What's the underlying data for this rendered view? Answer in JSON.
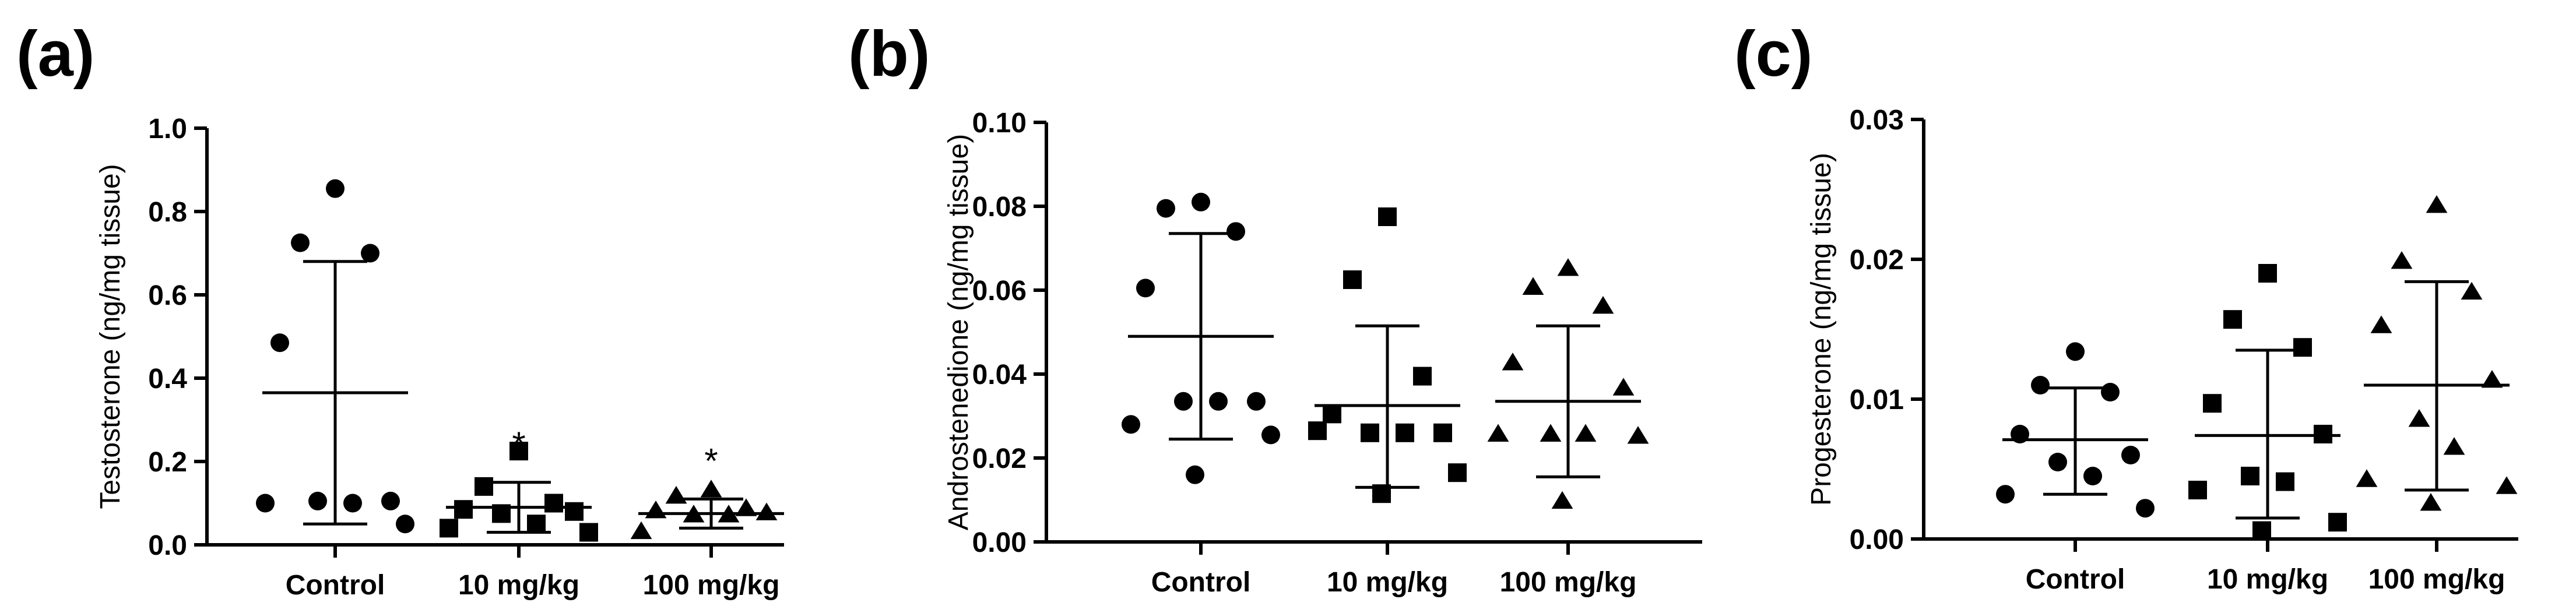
{
  "chart_data": [
    {
      "type": "scatter",
      "panel_label": "(a)",
      "title": "",
      "xlabel": "",
      "ylabel": "Testosterone (ng/mg tissue)",
      "ylim": [
        0,
        1.0
      ],
      "yticks": [
        0.0,
        0.2,
        0.4,
        0.6,
        0.8,
        1.0
      ],
      "ytick_labels": [
        "0.0",
        "0.2",
        "0.4",
        "0.6",
        "0.8",
        "1.0"
      ],
      "categories": [
        "Control",
        "10 mg/kg",
        "100 mg/kg"
      ],
      "series": [
        {
          "name": "Control",
          "marker": "circle",
          "values": [
            0.855,
            0.725,
            0.7,
            0.485,
            0.105,
            0.105,
            0.1,
            0.1,
            0.05
          ],
          "mean": 0.365,
          "sd_low": 0.05,
          "sd_high": 0.68,
          "annotation": ""
        },
        {
          "name": "10 mg/kg",
          "marker": "square",
          "values": [
            0.225,
            0.14,
            0.1,
            0.085,
            0.08,
            0.075,
            0.05,
            0.04,
            0.03
          ],
          "mean": 0.09,
          "sd_low": 0.03,
          "sd_high": 0.15,
          "annotation": "*"
        },
        {
          "name": "100 mg/kg",
          "marker": "triangle",
          "values": [
            0.13,
            0.115,
            0.085,
            0.08,
            0.075,
            0.07,
            0.07,
            0.03
          ],
          "mean": 0.075,
          "sd_low": 0.04,
          "sd_high": 0.11,
          "annotation": "*"
        }
      ]
    },
    {
      "type": "scatter",
      "panel_label": "(b)",
      "title": "",
      "xlabel": "",
      "ylabel": "Androstenedione (ng/mg tissue)",
      "ylim": [
        0,
        0.1
      ],
      "yticks": [
        0.0,
        0.02,
        0.04,
        0.06,
        0.08,
        0.1
      ],
      "ytick_labels": [
        "0.00",
        "0.02",
        "0.04",
        "0.06",
        "0.08",
        "0.10"
      ],
      "categories": [
        "Control",
        "10 mg/kg",
        "100 mg/kg"
      ],
      "series": [
        {
          "name": "Control",
          "marker": "circle",
          "values": [
            0.081,
            0.0795,
            0.074,
            0.0605,
            0.0335,
            0.0335,
            0.0335,
            0.028,
            0.0255,
            0.016
          ],
          "mean": 0.049,
          "sd_low": 0.0245,
          "sd_high": 0.0735,
          "annotation": ""
        },
        {
          "name": "10 mg/kg",
          "marker": "square",
          "values": [
            0.0775,
            0.0625,
            0.0395,
            0.0305,
            0.026,
            0.026,
            0.026,
            0.0265,
            0.0165,
            0.0115
          ],
          "mean": 0.0325,
          "sd_low": 0.013,
          "sd_high": 0.0515,
          "annotation": ""
        },
        {
          "name": "100 mg/kg",
          "marker": "triangle",
          "values": [
            0.065,
            0.0605,
            0.056,
            0.0425,
            0.0365,
            0.0255,
            0.0255,
            0.0255,
            0.025,
            0.0095
          ],
          "mean": 0.0335,
          "sd_low": 0.0155,
          "sd_high": 0.0515,
          "annotation": ""
        }
      ]
    },
    {
      "type": "scatter",
      "panel_label": "(c)",
      "title": "",
      "xlabel": "",
      "ylabel": "Progesterone (ng/mg tissue)",
      "ylim": [
        0,
        0.03
      ],
      "yticks": [
        0.0,
        0.01,
        0.02,
        0.03
      ],
      "ytick_labels": [
        "0.00",
        "0.01",
        "0.02",
        "0.03"
      ],
      "categories": [
        "Control",
        "10 mg/kg",
        "100 mg/kg"
      ],
      "series": [
        {
          "name": "Control",
          "marker": "circle",
          "values": [
            0.0134,
            0.011,
            0.0105,
            0.0075,
            0.006,
            0.0055,
            0.0045,
            0.0032,
            0.0022
          ],
          "mean": 0.0071,
          "sd_low": 0.0032,
          "sd_high": 0.0108,
          "annotation": ""
        },
        {
          "name": "10 mg/kg",
          "marker": "square",
          "values": [
            0.019,
            0.0157,
            0.0137,
            0.0097,
            0.0075,
            0.0045,
            0.0041,
            0.0035,
            0.0012,
            0.0006
          ],
          "mean": 0.0074,
          "sd_low": 0.0015,
          "sd_high": 0.0135,
          "annotation": ""
        },
        {
          "name": "100 mg/kg",
          "marker": "triangle",
          "values": [
            0.0238,
            0.0198,
            0.0176,
            0.0152,
            0.0113,
            0.0085,
            0.0065,
            0.0042,
            0.0037,
            0.0025
          ],
          "mean": 0.011,
          "sd_low": 0.0035,
          "sd_high": 0.0184,
          "annotation": ""
        }
      ]
    }
  ]
}
